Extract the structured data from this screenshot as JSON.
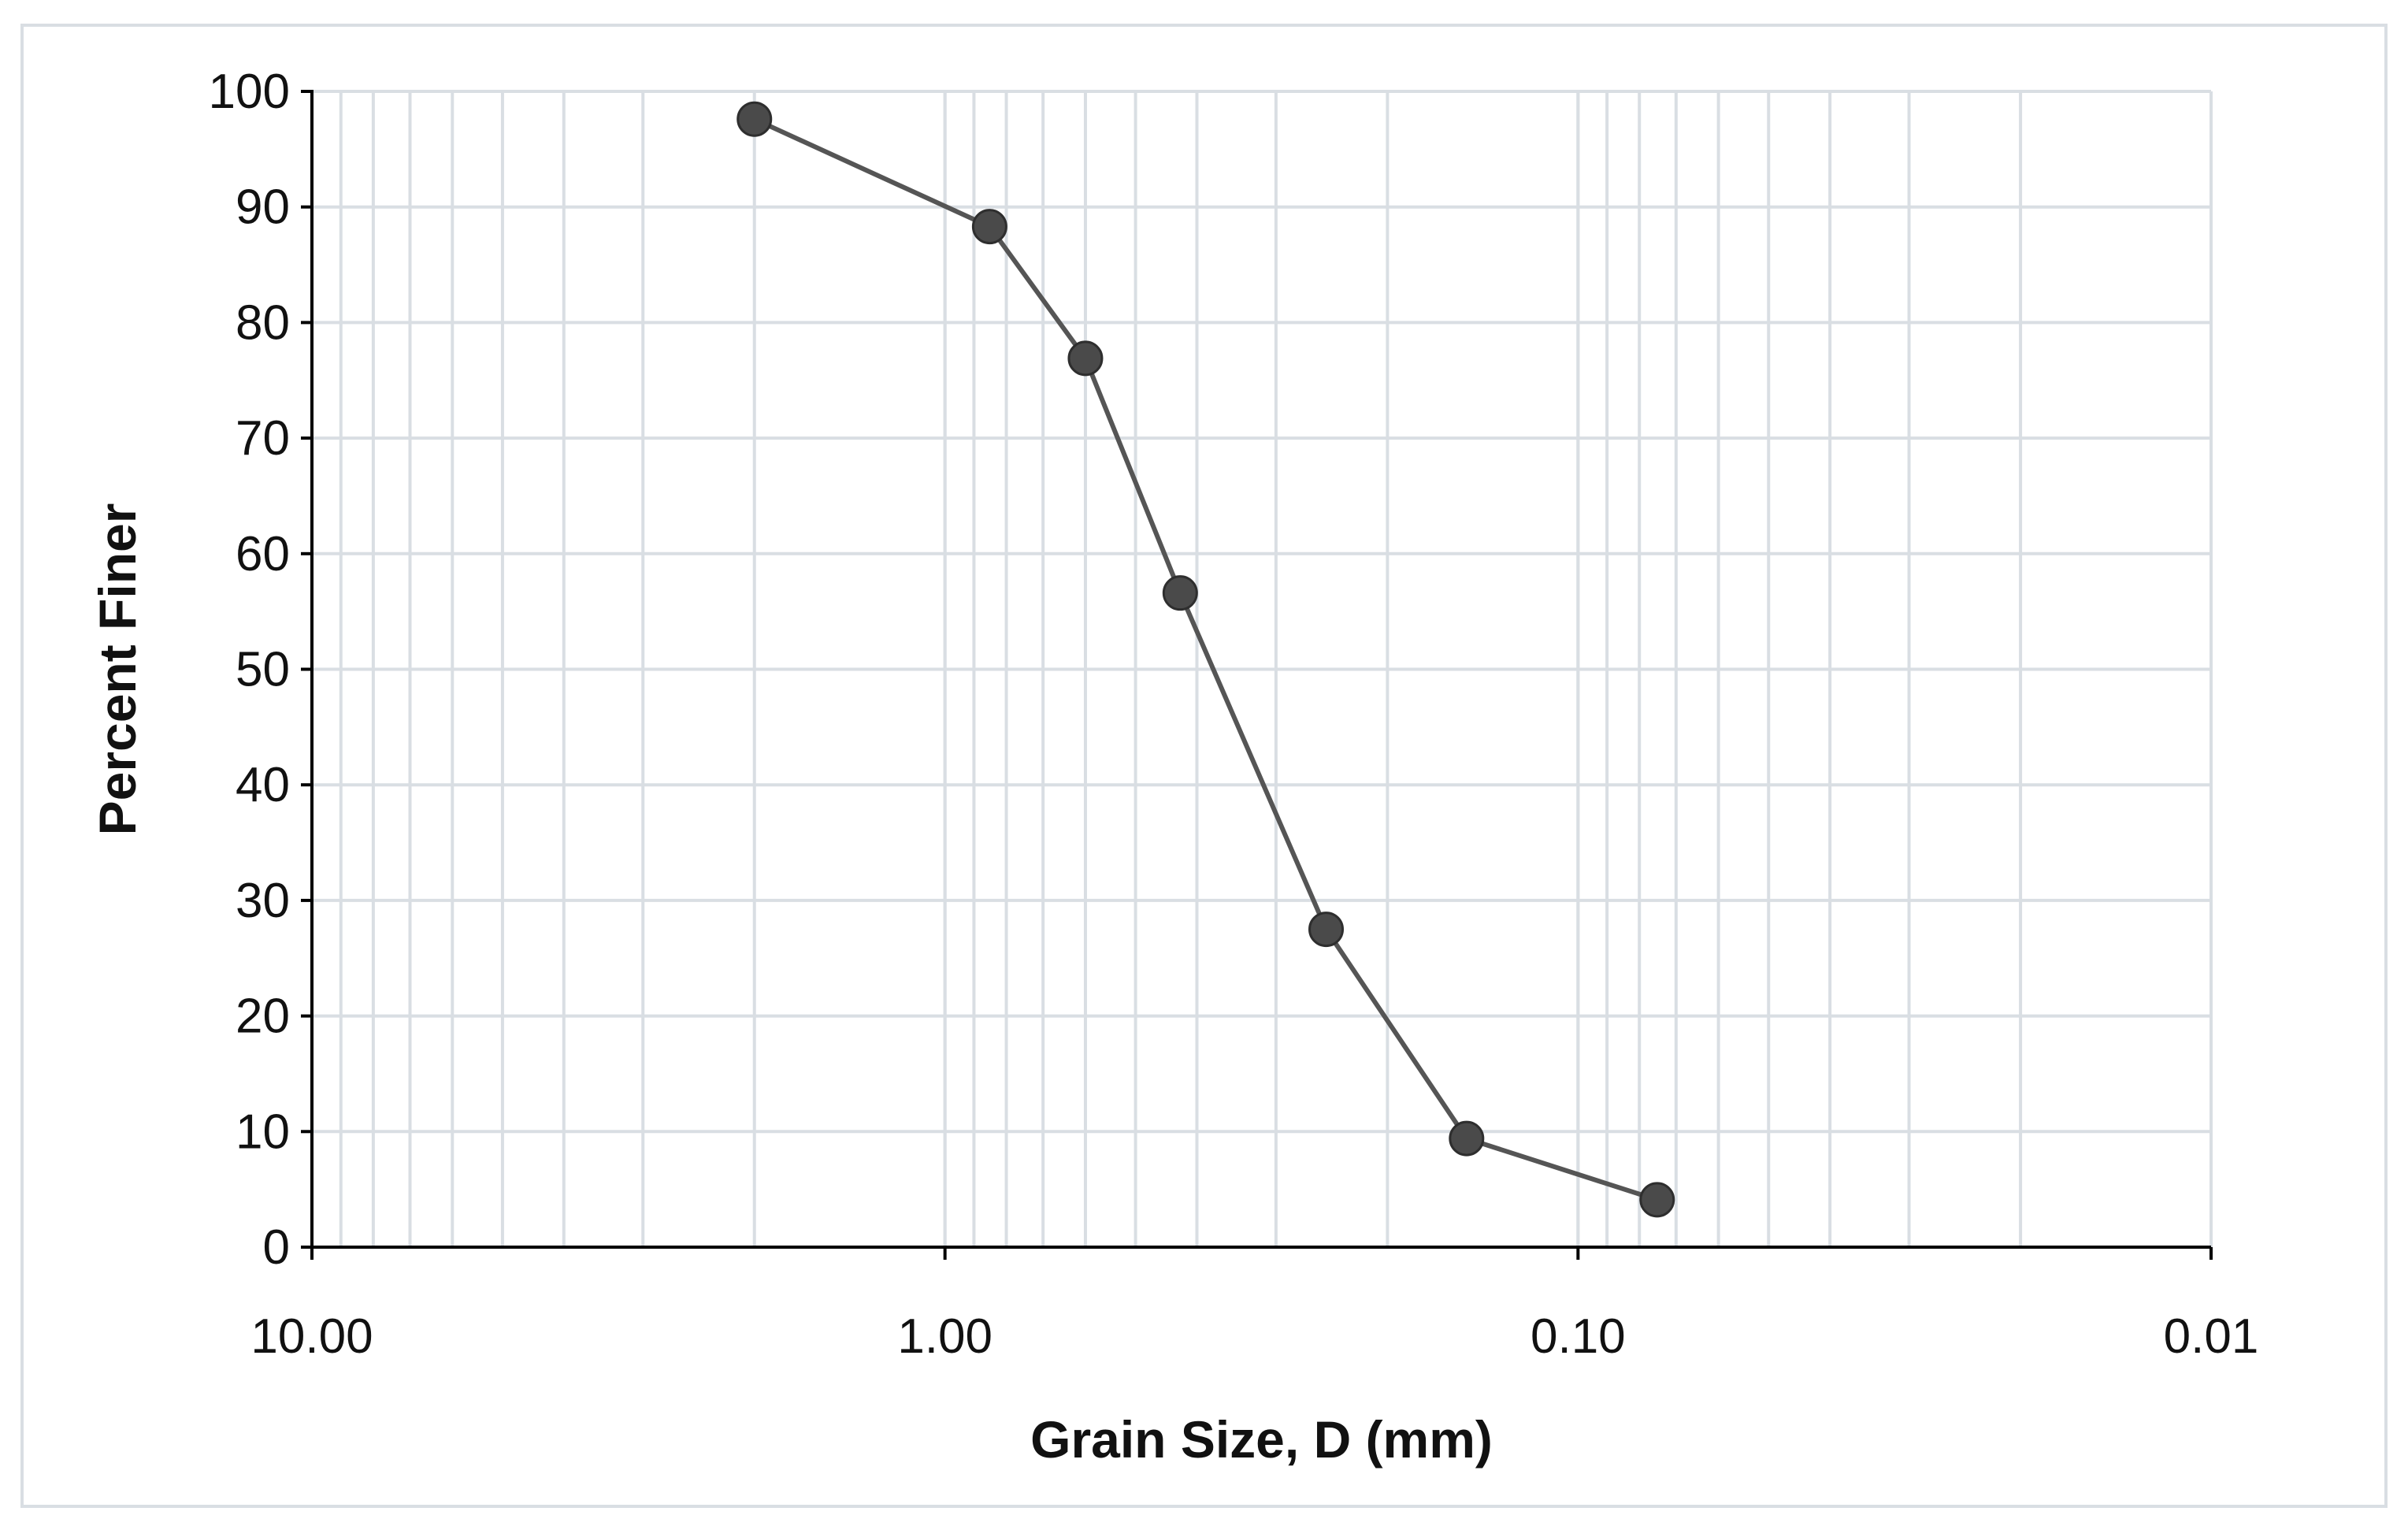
{
  "chart_data": {
    "type": "line",
    "title": "",
    "xlabel": "Grain Size, D (mm)",
    "ylabel": "Percent Finer",
    "x_scale": "log",
    "x_reversed": true,
    "xlim": [
      10,
      0.01
    ],
    "ylim": [
      0,
      100
    ],
    "x_ticks": [
      {
        "value": 10,
        "label": "10.00"
      },
      {
        "value": 1,
        "label": "1.00"
      },
      {
        "value": 0.1,
        "label": "0.10"
      },
      {
        "value": 0.01,
        "label": "0.01"
      }
    ],
    "y_ticks": [
      {
        "value": 0,
        "label": "0"
      },
      {
        "value": 10,
        "label": "10"
      },
      {
        "value": 20,
        "label": "20"
      },
      {
        "value": 30,
        "label": "30"
      },
      {
        "value": 40,
        "label": "40"
      },
      {
        "value": 50,
        "label": "50"
      },
      {
        "value": 60,
        "label": "60"
      },
      {
        "value": 70,
        "label": "70"
      },
      {
        "value": 80,
        "label": "80"
      },
      {
        "value": 90,
        "label": "90"
      },
      {
        "value": 100,
        "label": "100"
      }
    ],
    "grid": true,
    "series": [
      {
        "x": [
          2.0,
          0.85,
          0.6,
          0.425,
          0.25,
          0.15,
          0.075
        ],
        "y": [
          97.6,
          88.3,
          76.9,
          56.6,
          27.5,
          9.4,
          4.1
        ]
      }
    ],
    "colors": {
      "line": "#555555",
      "marker": "#4a4a4a",
      "grid": "#d9dee3",
      "axis": "#000000"
    }
  }
}
